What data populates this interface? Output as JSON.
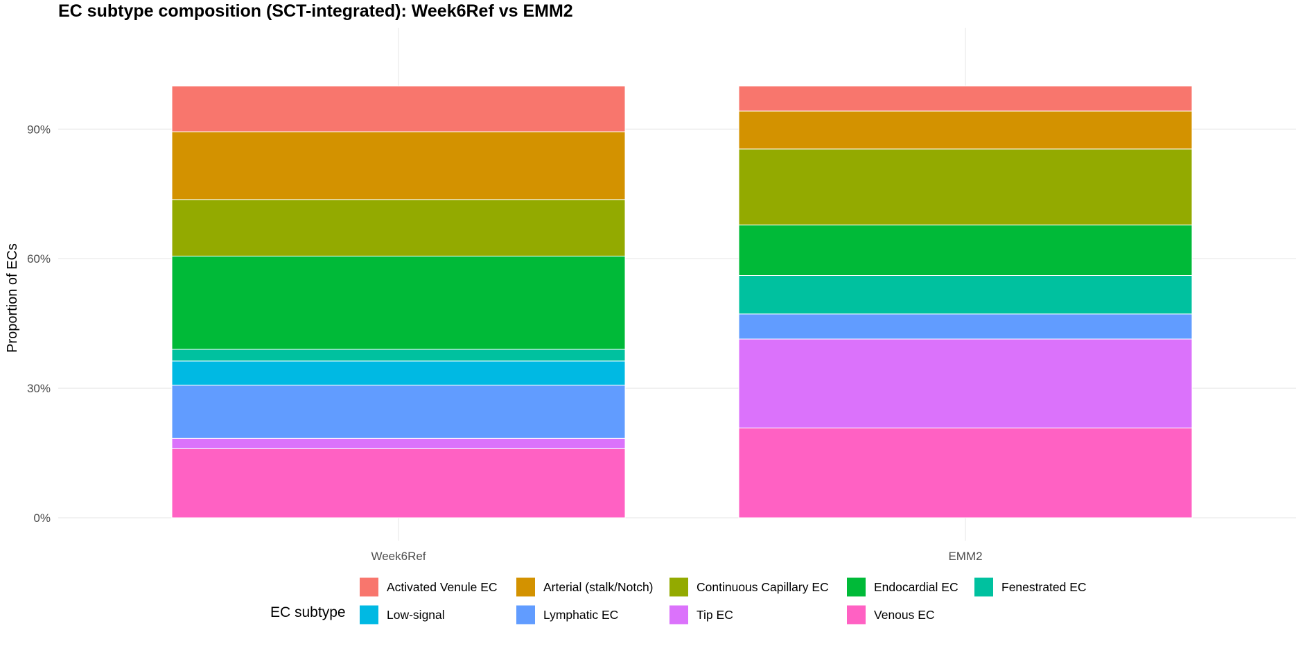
{
  "chart_data": {
    "type": "bar",
    "stacked": true,
    "title": "EC subtype composition (SCT-integrated): Week6Ref vs EMM2",
    "xlabel": "",
    "ylabel": "Proportion of ECs",
    "ylim": [
      0,
      1.1
    ],
    "yticks": [
      {
        "value": 0.0,
        "label": "0%"
      },
      {
        "value": 0.3,
        "label": "30%"
      },
      {
        "value": 0.6,
        "label": "60%"
      },
      {
        "value": 0.9,
        "label": "90%"
      }
    ],
    "categories": [
      "Week6Ref",
      "EMM2"
    ],
    "grid": true,
    "legend": {
      "title": "EC subtype",
      "position": "bottom"
    },
    "series": [
      {
        "name": "Activated Venule EC",
        "color": "#F8766D",
        "values": [
          0.106,
          0.058
        ]
      },
      {
        "name": "Arterial (stalk/Notch)",
        "color": "#D39200",
        "values": [
          0.157,
          0.088
        ]
      },
      {
        "name": "Continuous Capillary EC",
        "color": "#93AA00",
        "values": [
          0.131,
          0.176
        ]
      },
      {
        "name": "Endocardial EC",
        "color": "#00BA38",
        "values": [
          0.216,
          0.117
        ]
      },
      {
        "name": "Fenestrated EC",
        "color": "#00C19F",
        "values": [
          0.027,
          0.089
        ]
      },
      {
        "name": "Low-signal",
        "color": "#00B9E3",
        "values": [
          0.056,
          0.0
        ]
      },
      {
        "name": "Lymphatic EC",
        "color": "#619CFF",
        "values": [
          0.123,
          0.058
        ]
      },
      {
        "name": "Tip EC",
        "color": "#DB72FB",
        "values": [
          0.024,
          0.206
        ]
      },
      {
        "name": "Venous EC",
        "color": "#FF61C3",
        "values": [
          0.16,
          0.208
        ]
      }
    ]
  }
}
